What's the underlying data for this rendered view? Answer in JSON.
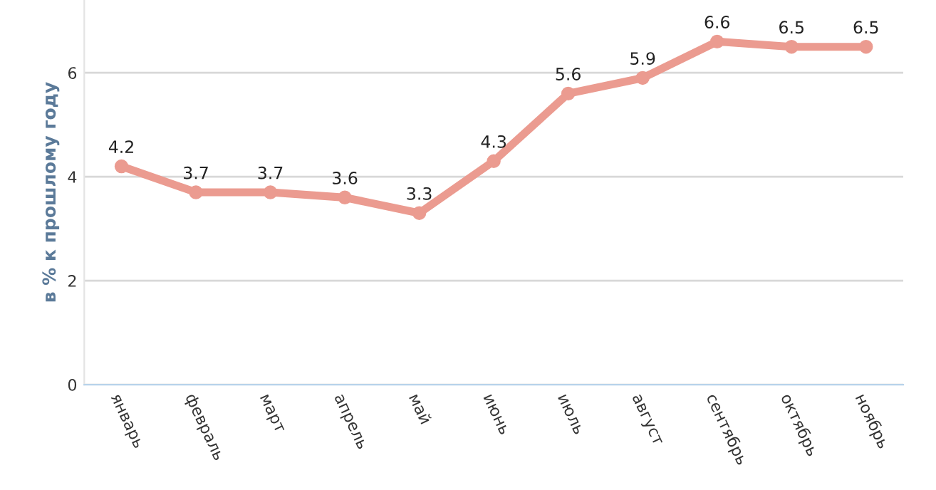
{
  "chart_data": {
    "type": "line",
    "ylabel": "в % к прошлому году",
    "categories": [
      "январь",
      "февраль",
      "март",
      "апрель",
      "май",
      "июнь",
      "июль",
      "август",
      "сентябрь",
      "октябрь",
      "ноябрь"
    ],
    "series": [
      {
        "color": "#eb9b90",
        "values": [
          4.2,
          3.7,
          3.7,
          3.6,
          3.3,
          4.3,
          5.6,
          5.9,
          6.6,
          6.5,
          6.5
        ]
      }
    ],
    "ylim": [
      0,
      7.4
    ],
    "yticks": [
      0,
      2,
      4,
      6
    ],
    "grid": "y",
    "marker": "circle",
    "line_style": "solid",
    "data_labels": true,
    "legend": false
  }
}
